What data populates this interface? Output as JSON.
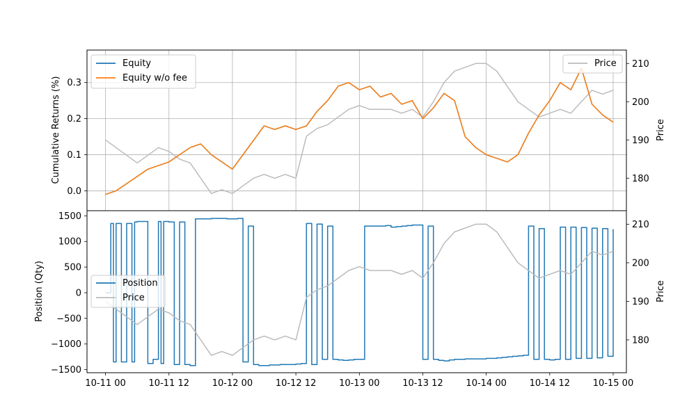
{
  "chart_data": [
    {
      "type": "line",
      "panel": "top",
      "ylabel": "Cumulative Returns (%)",
      "ylabel_right": "Price",
      "ylim": [
        -0.055,
        0.39
      ],
      "ylim_right": [
        171.5,
        213.5
      ],
      "yticks": [
        0.0,
        0.1,
        0.2,
        0.3
      ],
      "ytick_labels": [
        "0.0",
        "0.1",
        "0.2",
        "0.3"
      ],
      "yticks_right": [
        180,
        190,
        200,
        210
      ],
      "ytick_labels_right": [
        "180",
        "190",
        "200",
        "210"
      ],
      "grid": true,
      "legend_left": {
        "placement": "top-left",
        "entries": [
          "Equity",
          "Equity w/o fee"
        ]
      },
      "legend_right": {
        "placement": "top-right",
        "entries": [
          "Price"
        ]
      },
      "series": [
        {
          "name": "Equity",
          "color": "#1f77b4",
          "axis": "left",
          "x": [
            0,
            2,
            4,
            6,
            8,
            10,
            12,
            14,
            16,
            18,
            20,
            22,
            24,
            26,
            28,
            30,
            32,
            34,
            36,
            38,
            40,
            42,
            44,
            46,
            48,
            50,
            52,
            54,
            56,
            58,
            60,
            62,
            64,
            66,
            68,
            70,
            72,
            74,
            76,
            78,
            80,
            82,
            84,
            86,
            88,
            90,
            92,
            94,
            96
          ],
          "y": [
            -0.01,
            0.0,
            0.02,
            0.04,
            0.06,
            0.07,
            0.08,
            0.1,
            0.12,
            0.13,
            0.1,
            0.08,
            0.06,
            0.1,
            0.14,
            0.18,
            0.17,
            0.18,
            0.17,
            0.18,
            0.22,
            0.25,
            0.29,
            0.3,
            0.28,
            0.29,
            0.26,
            0.27,
            0.24,
            0.25,
            0.2,
            0.23,
            0.27,
            0.25,
            0.15,
            0.12,
            0.1,
            0.09,
            0.08,
            0.1,
            0.16,
            0.21,
            0.25,
            0.3,
            0.28,
            0.34,
            0.24,
            0.21,
            0.19
          ]
        },
        {
          "name": "Equity w/o fee",
          "color": "#ff7f0e",
          "axis": "left",
          "x": [
            0,
            2,
            4,
            6,
            8,
            10,
            12,
            14,
            16,
            18,
            20,
            22,
            24,
            26,
            28,
            30,
            32,
            34,
            36,
            38,
            40,
            42,
            44,
            46,
            48,
            50,
            52,
            54,
            56,
            58,
            60,
            62,
            64,
            66,
            68,
            70,
            72,
            74,
            76,
            78,
            80,
            82,
            84,
            86,
            88,
            90,
            92,
            94,
            96
          ],
          "y": [
            -0.01,
            0.0,
            0.02,
            0.04,
            0.06,
            0.07,
            0.08,
            0.1,
            0.12,
            0.13,
            0.1,
            0.08,
            0.06,
            0.1,
            0.14,
            0.18,
            0.17,
            0.18,
            0.17,
            0.18,
            0.22,
            0.25,
            0.29,
            0.3,
            0.28,
            0.29,
            0.26,
            0.27,
            0.24,
            0.25,
            0.2,
            0.23,
            0.27,
            0.25,
            0.15,
            0.12,
            0.1,
            0.09,
            0.08,
            0.1,
            0.16,
            0.21,
            0.25,
            0.3,
            0.28,
            0.34,
            0.24,
            0.21,
            0.19
          ]
        },
        {
          "name": "Price",
          "color": "#bbbbbb",
          "axis": "right",
          "x": [
            0,
            2,
            4,
            6,
            8,
            10,
            12,
            14,
            16,
            18,
            20,
            22,
            24,
            26,
            28,
            30,
            32,
            34,
            36,
            38,
            40,
            42,
            44,
            46,
            48,
            50,
            52,
            54,
            56,
            58,
            60,
            62,
            64,
            66,
            68,
            70,
            72,
            74,
            76,
            78,
            80,
            82,
            84,
            86,
            88,
            90,
            92,
            94,
            96
          ],
          "y": [
            190,
            188,
            186,
            184,
            186,
            188,
            187,
            185,
            184,
            180,
            176,
            177,
            176,
            178,
            180,
            181,
            180,
            181,
            180,
            191,
            193,
            194,
            196,
            198,
            199,
            198,
            198,
            198,
            197,
            198,
            196,
            200,
            205,
            208,
            209,
            210,
            210,
            208,
            204,
            200,
            198,
            196,
            197,
            198,
            197,
            200,
            203,
            202,
            203
          ]
        }
      ]
    },
    {
      "type": "line",
      "panel": "bottom",
      "ylabel": "Position (Qty)",
      "ylabel_right": "Price",
      "ylim": [
        -1560,
        1600
      ],
      "ylim_right": [
        171.5,
        213.5
      ],
      "yticks": [
        -1500,
        -1000,
        -500,
        0,
        500,
        1000,
        1500
      ],
      "ytick_labels": [
        "−1500",
        "−1000",
        "−500",
        "0",
        "500",
        "1000",
        "1500"
      ],
      "yticks_right": [
        180,
        190,
        200,
        210
      ],
      "ytick_labels_right": [
        "180",
        "190",
        "200",
        "210"
      ],
      "xticks": [
        0,
        12,
        24,
        36,
        48,
        60,
        72,
        84,
        96
      ],
      "xtick_labels": [
        "10-11 00",
        "10-11 12",
        "10-12 00",
        "10-12 12",
        "10-13 00",
        "10-13 12",
        "10-14 00",
        "10-14 12",
        "10-15 00"
      ],
      "xlim": [
        -3.5,
        98.5
      ],
      "grid": false,
      "legend": {
        "placement": "center-left",
        "entries": [
          "Position",
          "Price"
        ]
      },
      "series": [
        {
          "name": "Position",
          "color": "#1f77b4",
          "axis": "left",
          "x": [
            0,
            1,
            1.5,
            2,
            3,
            4,
            5,
            5.5,
            6,
            7,
            8,
            9,
            10,
            10.5,
            11,
            12,
            13,
            14,
            15,
            16,
            17,
            18,
            19,
            20,
            21,
            22,
            23,
            24,
            25,
            26,
            27,
            28,
            29,
            30,
            31,
            32,
            33,
            34,
            35,
            36,
            37,
            38,
            39,
            40,
            41,
            42,
            43,
            44,
            45,
            46,
            47,
            48,
            49,
            50,
            51,
            52,
            53,
            54,
            55,
            56,
            57,
            58,
            59,
            60,
            61,
            62,
            63,
            64,
            65,
            66,
            67,
            68,
            69,
            70,
            71,
            72,
            73,
            74,
            75,
            76,
            77,
            78,
            79,
            80,
            81,
            82,
            83,
            84,
            85,
            86,
            87,
            88,
            89,
            90,
            91,
            92,
            93,
            94,
            95,
            96
          ],
          "y": [
            0,
            1350,
            -1350,
            1350,
            -1350,
            1350,
            -1350,
            1380,
            1390,
            1390,
            -1380,
            -1300,
            1390,
            -1380,
            1390,
            1380,
            -1400,
            1380,
            -1400,
            -1420,
            1440,
            1440,
            1440,
            1450,
            1450,
            1450,
            1440,
            1440,
            1450,
            -1350,
            1300,
            -1400,
            -1420,
            -1420,
            -1410,
            -1410,
            -1400,
            -1400,
            -1400,
            -1390,
            -1380,
            1350,
            -1400,
            1340,
            -1300,
            1300,
            -1300,
            -1310,
            -1320,
            -1310,
            -1300,
            -1300,
            1300,
            1300,
            1300,
            1300,
            1310,
            1280,
            1290,
            1300,
            1310,
            1320,
            1320,
            -1300,
            1300,
            -1300,
            -1320,
            -1330,
            -1310,
            -1300,
            -1300,
            -1290,
            -1290,
            -1290,
            -1290,
            -1280,
            -1280,
            -1270,
            -1260,
            -1250,
            -1240,
            -1230,
            -1220,
            1300,
            -1300,
            1250,
            -1300,
            -1310,
            -1300,
            1280,
            -1300,
            1280,
            -1280,
            1270,
            -1280,
            1260,
            -1270,
            1250,
            -1240,
            1240
          ]
        },
        {
          "name": "Price",
          "color": "#bbbbbb",
          "axis": "right",
          "x": [
            0,
            2,
            4,
            6,
            8,
            10,
            12,
            14,
            16,
            18,
            20,
            22,
            24,
            26,
            28,
            30,
            32,
            34,
            36,
            38,
            40,
            42,
            44,
            46,
            48,
            50,
            52,
            54,
            56,
            58,
            60,
            62,
            64,
            66,
            68,
            70,
            72,
            74,
            76,
            78,
            80,
            82,
            84,
            86,
            88,
            90,
            92,
            94,
            96
          ],
          "y": [
            190,
            188,
            186,
            184,
            186,
            188,
            187,
            185,
            184,
            180,
            176,
            177,
            176,
            178,
            180,
            181,
            180,
            181,
            180,
            191,
            193,
            194,
            196,
            198,
            199,
            198,
            198,
            198,
            197,
            198,
            196,
            200,
            205,
            208,
            209,
            210,
            210,
            208,
            204,
            200,
            198,
            196,
            197,
            198,
            197,
            200,
            203,
            202,
            203
          ]
        }
      ]
    }
  ]
}
